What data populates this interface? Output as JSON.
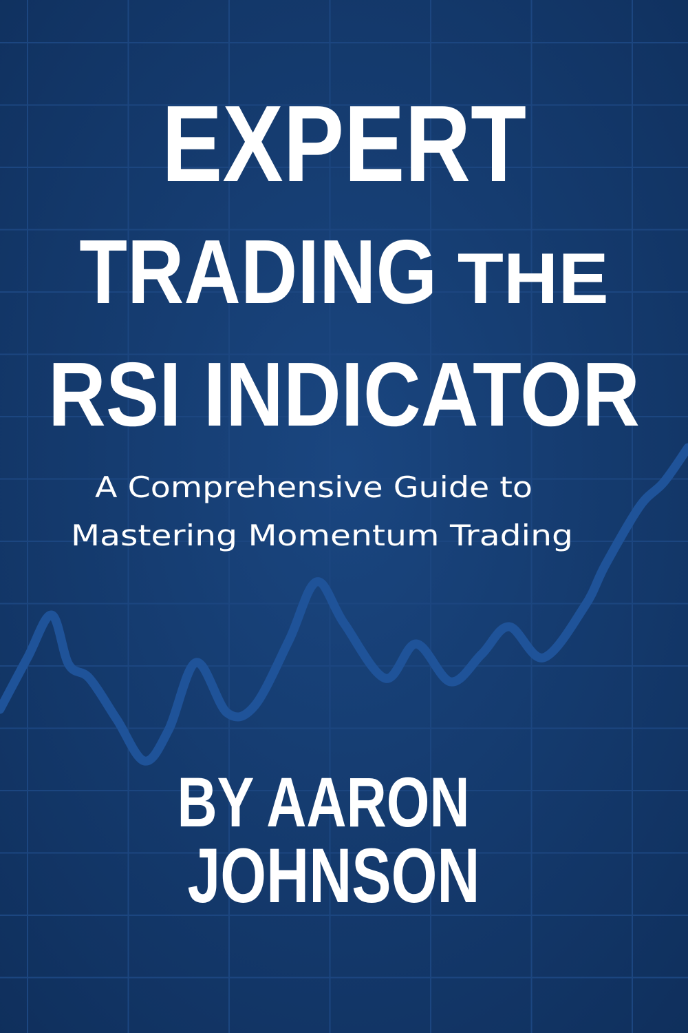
{
  "colors": {
    "background": "#133a6e",
    "grid": "#1c4680",
    "line": "#1f5399",
    "text": "#ffffff"
  },
  "cover": {
    "title_line1": "EXPERT",
    "title_line2_main": "TRADING",
    "title_line2_small": "THE",
    "title_line3": "RSI INDICATOR",
    "subtitle_line1": "A Comprehensive Guide to",
    "subtitle_line2": "Mastering Momentum Trading",
    "author_line1": "BY AARON",
    "author_line2": "JOHNSON"
  }
}
